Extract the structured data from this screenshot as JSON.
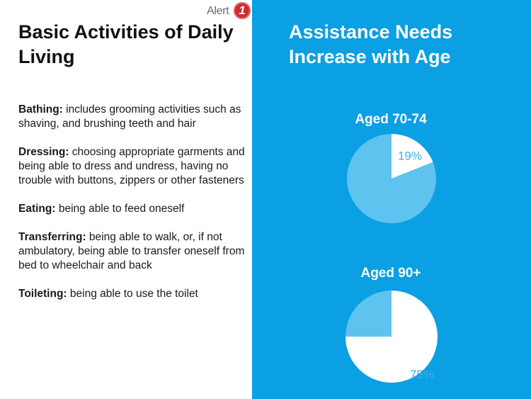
{
  "logo": {
    "text": "Alert",
    "badge": "1"
  },
  "left": {
    "title": "Basic Activities of Daily Living",
    "items": [
      {
        "term": "Bathing:",
        "text": " includes grooming activities such as shaving, and brushing teeth and hair"
      },
      {
        "term": "Dressing:",
        "text": " choosing appropriate garments and being able to dress and undress, having no trouble with buttons, zippers or other fasteners"
      },
      {
        "term": "Eating:",
        "text": " being able to feed oneself"
      },
      {
        "term": "Transferring:",
        "text": " being able to walk, or, if not ambulatory, being able to transfer oneself from bed to wheelchair and back"
      },
      {
        "term": "Toileting:",
        "text": " being able to use the toilet"
      }
    ]
  },
  "colors": {
    "panel": "#0b9fe3",
    "slice_light": "#5ec3ee",
    "slice_white": "#ffffff",
    "label_blue": "#3ab0e8"
  },
  "chart_data": [
    {
      "type": "pie",
      "title": "Aged 70-74",
      "slices": [
        {
          "value": 19,
          "label": "19%",
          "color": "#ffffff"
        },
        {
          "value": 81,
          "label": "",
          "color": "#5ec3ee"
        }
      ]
    },
    {
      "type": "pie",
      "title": "Aged 90+",
      "slices": [
        {
          "value": 75,
          "label": "75%",
          "color": "#ffffff"
        },
        {
          "value": 25,
          "label": "",
          "color": "#5ec3ee"
        }
      ]
    }
  ],
  "right": {
    "title": "Assistance Needs Increase with Age"
  }
}
